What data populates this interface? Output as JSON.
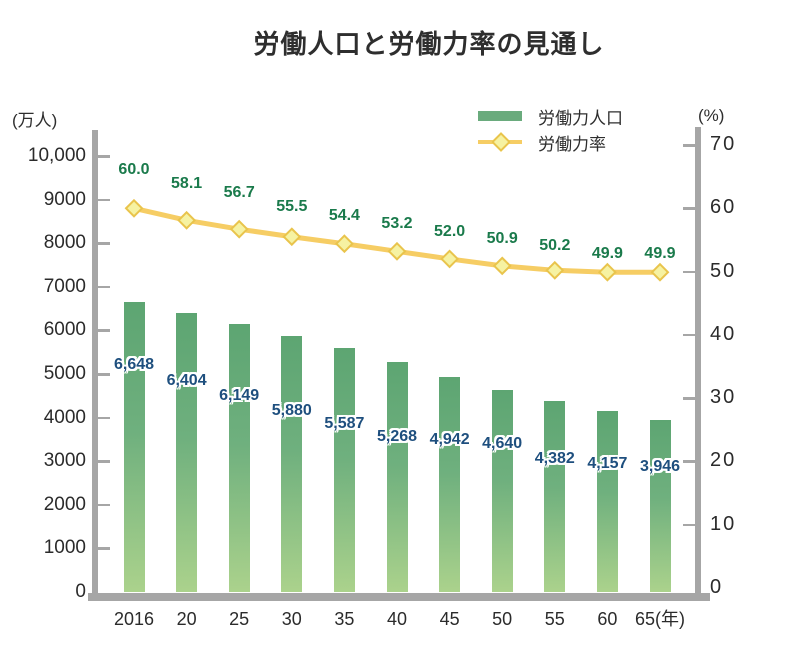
{
  "chart_data": {
    "type": "bar",
    "title": "労働人口と労働力率の見通し",
    "categories": [
      "2016",
      "20",
      "25",
      "30",
      "35",
      "40",
      "45",
      "50",
      "55",
      "60",
      "65(年)"
    ],
    "series": [
      {
        "name": "労働力人口",
        "type": "bar",
        "axis": "left",
        "values": [
          6648,
          6404,
          6149,
          5880,
          5587,
          5268,
          4942,
          4640,
          4382,
          4157,
          3946
        ],
        "labels": [
          "6,648",
          "6,404",
          "6,149",
          "5,880",
          "5,587",
          "5,268",
          "4,942",
          "4,640",
          "4,382",
          "4,157",
          "3,946"
        ]
      },
      {
        "name": "労働力率",
        "type": "line",
        "axis": "right",
        "values": [
          60.0,
          58.1,
          56.7,
          55.5,
          54.4,
          53.2,
          52.0,
          50.9,
          50.2,
          49.9,
          49.9
        ],
        "labels": [
          "60.0",
          "58.1",
          "56.7",
          "55.5",
          "54.4",
          "53.2",
          "52.0",
          "50.9",
          "50.2",
          "49.9",
          "49.9"
        ]
      }
    ],
    "left_axis": {
      "unit": "(万人)",
      "min": 0,
      "max": 10000,
      "tick_step": 1000,
      "tick_labels": [
        "10,000",
        "9000",
        "8000",
        "7000",
        "6000",
        "5000",
        "4000",
        "3000",
        "2000",
        "1000",
        "0"
      ]
    },
    "right_axis": {
      "unit": "(%)",
      "min": 0,
      "max": 70,
      "tick_step": 10,
      "tick_labels": [
        "70",
        "60",
        "50",
        "40",
        "30",
        "20",
        "10",
        "0"
      ]
    },
    "grid": false,
    "legend_position": "top-right",
    "colors": {
      "bar_top": "#5da572",
      "bar_mid": "#6fb07e",
      "bar_bottom": "#abd28c",
      "legend_bar": "#6aab7d",
      "line": "#f6cd64",
      "marker_fill": "#f6f2a2",
      "marker_stroke": "#e9c44c",
      "bar_label": "#1e4f7e",
      "line_label": "#1a7a4b",
      "axis_gray": "#a6a6a6",
      "text": "#2e2e2e"
    }
  }
}
